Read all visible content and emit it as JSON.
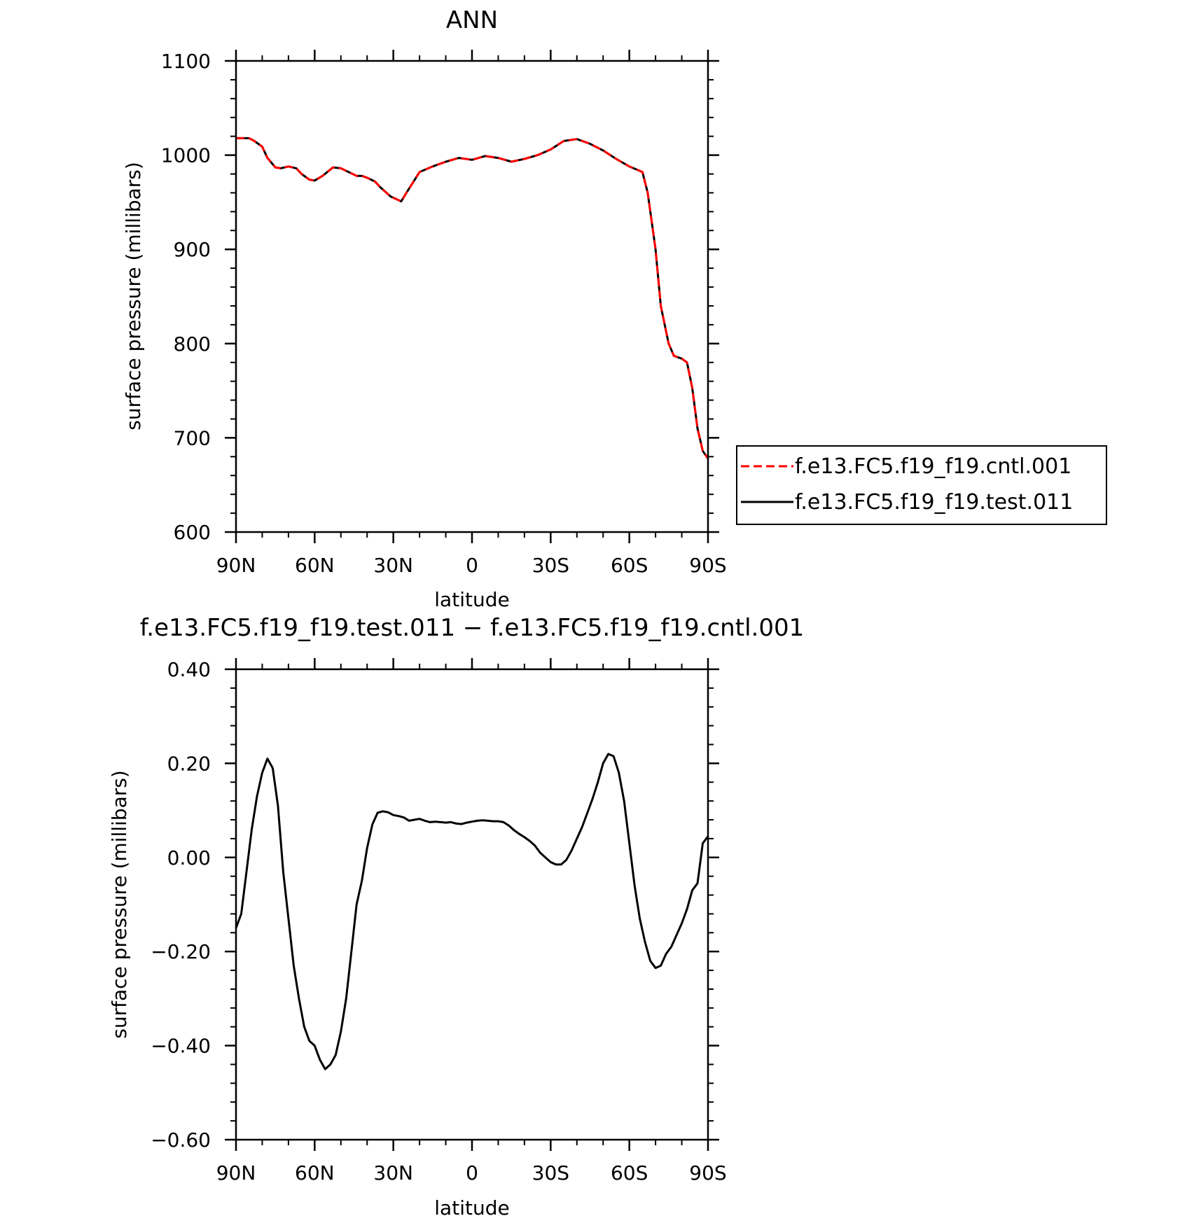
{
  "chart_data": [
    {
      "type": "line",
      "title": "ANN",
      "xlabel": "latitude",
      "ylabel": "surface pressure (millibars)",
      "xlim": [
        90,
        -90
      ],
      "ylim": [
        600,
        1100
      ],
      "xticks": [
        90,
        60,
        30,
        0,
        -30,
        -60,
        -90
      ],
      "xtick_labels": [
        "90N",
        "60N",
        "30N",
        "0",
        "30S",
        "60S",
        "90S"
      ],
      "yticks": [
        600,
        700,
        800,
        900,
        1000,
        1100
      ],
      "ytick_labels": [
        "600",
        "700",
        "800",
        "900",
        "1000",
        "1100"
      ],
      "legend": {
        "position": "right",
        "entries": [
          {
            "name": "f.e13.FC5.f19_f19.cntl.001",
            "color": "#ff0000",
            "style": "dashed"
          },
          {
            "name": "f.e13.FC5.f19_f19.test.011",
            "color": "#000000",
            "style": "solid"
          }
        ]
      },
      "series": [
        {
          "name": "f.e13.FC5.f19_f19.test.011",
          "color": "#000000",
          "style": "solid",
          "x": [
            90,
            85,
            83,
            80,
            78,
            75,
            73,
            70,
            67,
            65,
            62,
            60,
            57,
            53,
            50,
            47,
            44,
            42,
            40,
            37,
            35,
            31,
            27,
            25,
            20,
            15,
            10,
            5,
            0,
            -5,
            -10,
            -15,
            -20,
            -25,
            -30,
            -35,
            -40,
            -45,
            -50,
            -55,
            -60,
            -65,
            -67,
            -70,
            -72,
            -75,
            -77,
            -80,
            -82,
            -84,
            -86,
            -88,
            -90
          ],
          "y": [
            1018,
            1018,
            1015,
            1009,
            997,
            987,
            986,
            988,
            986,
            980,
            974,
            973,
            978,
            987,
            986,
            982,
            978,
            978,
            976,
            972,
            966,
            956,
            951,
            960,
            982,
            988,
            993,
            997,
            995,
            999,
            997,
            993,
            996,
            1000,
            1006,
            1015,
            1017,
            1012,
            1005,
            996,
            988,
            982,
            960,
            900,
            840,
            800,
            787,
            784,
            780,
            753,
            710,
            686,
            678
          ]
        },
        {
          "name": "f.e13.FC5.f19_f19.cntl.001",
          "color": "#ff0000",
          "style": "dashed",
          "x": [
            90,
            85,
            83,
            80,
            78,
            75,
            73,
            70,
            67,
            65,
            62,
            60,
            57,
            53,
            50,
            47,
            44,
            42,
            40,
            37,
            35,
            31,
            27,
            25,
            20,
            15,
            10,
            5,
            0,
            -5,
            -10,
            -15,
            -20,
            -25,
            -30,
            -35,
            -40,
            -45,
            -50,
            -55,
            -60,
            -65,
            -67,
            -70,
            -72,
            -75,
            -77,
            -80,
            -82,
            -84,
            -86,
            -88,
            -90
          ],
          "y": [
            1018,
            1018,
            1015,
            1009,
            997,
            987,
            986,
            988,
            986,
            980,
            974,
            973,
            978,
            987,
            986,
            982,
            978,
            978,
            976,
            972,
            966,
            956,
            951,
            960,
            982,
            988,
            993,
            997,
            995,
            999,
            997,
            993,
            996,
            1000,
            1006,
            1015,
            1017,
            1012,
            1005,
            996,
            988,
            982,
            960,
            900,
            840,
            800,
            787,
            784,
            780,
            753,
            710,
            686,
            678
          ]
        }
      ]
    },
    {
      "type": "line",
      "title": "f.e13.FC5.f19_f19.test.011 − f.e13.FC5.f19_f19.cntl.001",
      "xlabel": "latitude",
      "ylabel": "surface pressure (millibars)",
      "xlim": [
        90,
        -90
      ],
      "ylim": [
        -0.6,
        0.4
      ],
      "xticks": [
        90,
        60,
        30,
        0,
        -30,
        -60,
        -90
      ],
      "xtick_labels": [
        "90N",
        "60N",
        "30N",
        "0",
        "30S",
        "60S",
        "90S"
      ],
      "yticks": [
        -0.6,
        -0.4,
        -0.2,
        0.0,
        0.2,
        0.4
      ],
      "ytick_labels": [
        "−0.60",
        "−0.40",
        "−0.20",
        "0.00",
        "0.20",
        "0.40"
      ],
      "series": [
        {
          "color": "#000000",
          "style": "solid",
          "x": [
            90,
            88,
            86,
            84,
            82,
            80,
            78,
            76,
            74,
            72,
            70,
            68,
            66,
            64,
            62,
            60,
            58,
            56,
            54,
            52,
            50,
            48,
            46,
            44,
            42,
            40,
            38,
            36,
            34,
            32,
            30,
            28,
            26,
            24,
            22,
            20,
            18,
            16,
            14,
            12,
            10,
            8,
            6,
            4,
            2,
            0,
            -2,
            -4,
            -6,
            -8,
            -10,
            -12,
            -14,
            -16,
            -18,
            -20,
            -22,
            -24,
            -26,
            -28,
            -30,
            -32,
            -34,
            -36,
            -38,
            -40,
            -42,
            -44,
            -46,
            -48,
            -50,
            -52,
            -54,
            -56,
            -58,
            -60,
            -62,
            -64,
            -66,
            -68,
            -70,
            -72,
            -74,
            -76,
            -78,
            -80,
            -82,
            -84,
            -86,
            -88,
            -90
          ],
          "y": [
            -0.15,
            -0.12,
            -0.03,
            0.06,
            0.13,
            0.18,
            0.21,
            0.19,
            0.11,
            -0.03,
            -0.13,
            -0.23,
            -0.3,
            -0.36,
            -0.39,
            -0.4,
            -0.43,
            -0.45,
            -0.44,
            -0.42,
            -0.37,
            -0.3,
            -0.2,
            -0.1,
            -0.05,
            0.02,
            0.07,
            0.095,
            0.098,
            0.096,
            0.09,
            0.088,
            0.085,
            0.078,
            0.08,
            0.082,
            0.078,
            0.075,
            0.076,
            0.075,
            0.074,
            0.075,
            0.072,
            0.071,
            0.074,
            0.076,
            0.078,
            0.079,
            0.078,
            0.077,
            0.077,
            0.075,
            0.068,
            0.058,
            0.05,
            0.043,
            0.035,
            0.025,
            0.01,
            0.0,
            -0.01,
            -0.015,
            -0.015,
            -0.005,
            0.015,
            0.04,
            0.065,
            0.095,
            0.125,
            0.16,
            0.2,
            0.22,
            0.215,
            0.18,
            0.12,
            0.03,
            -0.06,
            -0.13,
            -0.18,
            -0.22,
            -0.235,
            -0.23,
            -0.205,
            -0.19,
            -0.165,
            -0.14,
            -0.11,
            -0.07,
            -0.055,
            0.03,
            0.045
          ]
        }
      ]
    }
  ]
}
